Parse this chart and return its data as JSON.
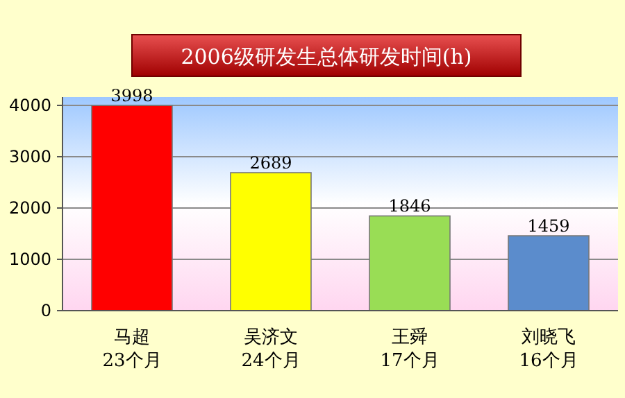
{
  "chart_data": {
    "type": "bar",
    "title": "2006级研发生总体研发时间(h)",
    "categories": [
      "马超\n23个月",
      "吴济文\n24个月",
      "王舜\n17个月",
      "刘晓飞\n16个月"
    ],
    "values": [
      3998,
      2689,
      1846,
      1459
    ],
    "colors": [
      "#ff0000",
      "#ffff00",
      "#99dd55",
      "#5b8ccc"
    ],
    "ylim": [
      0,
      4000
    ],
    "yticks": [
      0,
      1000,
      2000,
      3000,
      4000
    ],
    "grid": "y",
    "data_labels": true
  }
}
